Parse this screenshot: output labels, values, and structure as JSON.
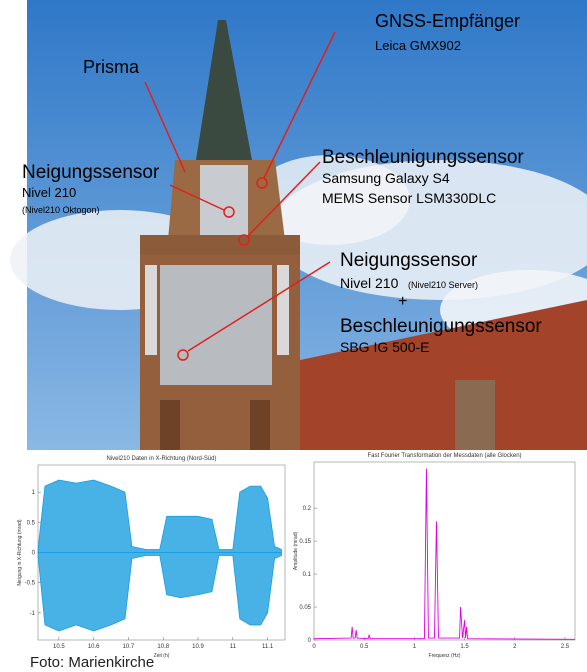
{
  "photo": {
    "annotations": [
      {
        "title": "GNSS-Empfänger",
        "lines": [
          "Leica GMX902"
        ]
      },
      {
        "title": "Prisma",
        "lines": []
      },
      {
        "title": "Neigungssensor",
        "lines": [
          "Nivel 210",
          "(Nivel210 Oktogon)"
        ]
      },
      {
        "title": "Beschleunigungssensor",
        "lines": [
          "Samsung Galaxy S4",
          "MEMS Sensor LSM330DLC"
        ]
      },
      {
        "title": "Neigungssensor",
        "lines": [
          "Nivel 210",
          "(Nivel210 Server)",
          "+",
          "Beschleunigungssensor",
          "SBG IG 500-E"
        ]
      }
    ]
  },
  "chart_data": [
    {
      "type": "band",
      "title": "Nivel210 Daten in X-Richtung (Nord-Süd)",
      "x_label": "Zeit (h)",
      "y_label": "Neigung in X-Richtung (mrad)",
      "x": [
        10.44,
        10.46,
        10.5,
        10.55,
        10.6,
        10.65,
        10.69,
        10.71,
        10.75,
        10.79,
        10.81,
        10.85,
        10.9,
        10.94,
        10.96,
        11.0,
        11.02,
        11.05,
        11.08,
        11.1,
        11.12,
        11.14
      ],
      "series": [
        {
          "color": "#1a9ee0",
          "values": [
            0.05,
            1.1,
            1.2,
            1.15,
            1.2,
            1.1,
            1.0,
            0.1,
            0.05,
            0.05,
            0.6,
            0.6,
            0.6,
            0.55,
            0.05,
            0.05,
            1.0,
            1.1,
            1.1,
            0.9,
            0.1,
            0.05
          ]
        },
        {
          "color": "#1a9ee0",
          "values": [
            -0.05,
            -1.2,
            -1.3,
            -1.2,
            -1.3,
            -1.2,
            -1.1,
            -0.1,
            -0.05,
            -0.05,
            -0.7,
            -0.75,
            -0.7,
            -0.65,
            -0.05,
            -0.05,
            -1.1,
            -1.2,
            -1.2,
            -1.0,
            -0.1,
            -0.05
          ]
        }
      ],
      "xlim": [
        10.44,
        11.15
      ],
      "xticks": [
        10.5,
        10.6,
        10.7,
        10.8,
        10.9,
        11,
        11.1
      ],
      "ylim": [
        -1.45,
        1.45
      ],
      "yticks": [
        -1,
        -0.5,
        0,
        0.5,
        1
      ]
    },
    {
      "type": "line",
      "title": "Fast Fourier Transformation der Messdaten (alle Glocken)",
      "x_label": "Frequenz (Hz)",
      "y_label": "Amplitude (mrad)",
      "x": [
        0,
        0.37,
        0.38,
        0.39,
        0.41,
        0.42,
        0.43,
        0.54,
        0.55,
        0.56,
        1.1,
        1.12,
        1.14,
        1.2,
        1.22,
        1.24,
        1.45,
        1.46,
        1.48,
        1.5,
        1.51,
        1.52,
        1.53,
        2.6
      ],
      "series": [
        {
          "color": "#e000e0",
          "values": [
            0.002,
            0.003,
            0.02,
            0.003,
            0.003,
            0.015,
            0.003,
            0.002,
            0.008,
            0.002,
            0.002,
            0.26,
            0.003,
            0.003,
            0.18,
            0.003,
            0.003,
            0.05,
            0.003,
            0.03,
            0.003,
            0.02,
            0.002,
            0.001
          ]
        }
      ],
      "xlim": [
        0,
        2.6
      ],
      "xticks": [
        0,
        0.5,
        1,
        1.5,
        2,
        2.5
      ],
      "ylim": [
        0,
        0.27
      ],
      "yticks": [
        0,
        0.05,
        0.1,
        0.15,
        0.2
      ]
    }
  ],
  "caption": "Foto: Marienkirche"
}
